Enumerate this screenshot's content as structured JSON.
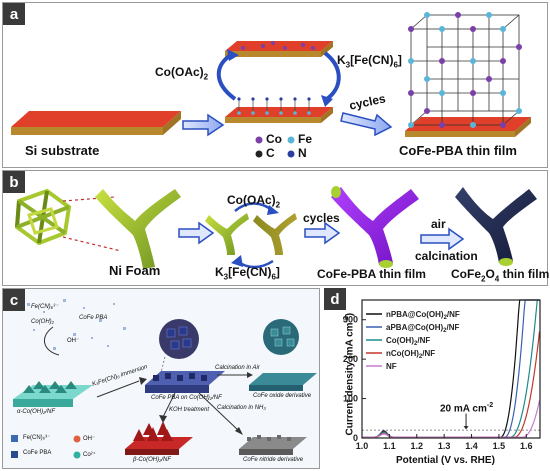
{
  "panel_a": {
    "tag": "a",
    "substrate_label": "Si substrate",
    "reagent_1": "Co(OAc)",
    "reagent_1_sub": "2",
    "reagent_2": "K",
    "reagent_2_sub": "3",
    "reagent_2_rest": "[Fe(CN)",
    "reagent_2_sub2": "6",
    "reagent_2_end": "]",
    "cycles": "cycles",
    "legend": [
      {
        "symbol": "Co",
        "color": "#7a3fa8"
      },
      {
        "symbol": "Fe",
        "color": "#5ab6d8"
      },
      {
        "symbol": "C",
        "color": "#222222"
      },
      {
        "symbol": "N",
        "color": "#2b3fa0"
      }
    ],
    "product_label": "CoFe-PBA thin film"
  },
  "panel_b": {
    "tag": "b",
    "foam_label": "Ni Foam",
    "reagent_1": "Co(OAc)",
    "reagent_1_sub": "2",
    "reagent_2": "K",
    "reagent_2_sub": "3",
    "reagent_2_rest": "[Fe(CN)",
    "reagent_2_sub2": "6",
    "reagent_2_end": "]",
    "cycles": "cycles",
    "pba_label": "CoFe-PBA thin film",
    "air": "air",
    "calcination": "calcination",
    "oxide_label": "CoFe",
    "oxide_sub1": "2",
    "oxide_mid": "O",
    "oxide_sub2": "4",
    "oxide_end": " thin film"
  },
  "panel_c": {
    "tag": "c",
    "lbl_fecn": "Fe(CN)₆³⁻",
    "lbl_cofepba": "CoFe PBA",
    "lbl_cooh": "Co(OH)₂",
    "lbl_oh": "OH⁻",
    "lbl_substrate": "α-Co(OH)₂/NF",
    "lbl_immersion": "K₃Fe(CN)₆ immersion",
    "lbl_pba_on": "CoFe PBA on Co(OH)₂/NF",
    "lbl_calc_air": "Calcination in Air",
    "lbl_oxide": "CoFe oxide derivative",
    "lbl_koh": "KOH treatment",
    "lbl_calc_nh3": "Calcination in NH₃",
    "lbl_beta": "β-Co(OH)₂/NF",
    "lbl_nitride": "CoFe nitride derivative",
    "legend": [
      {
        "label": "Fe(CN)₆³⁻",
        "color": "#3a6ab0"
      },
      {
        "label": "OH⁻",
        "color": "#e06040"
      },
      {
        "label": "CoFe PBA",
        "color": "#2a4a90"
      },
      {
        "label": "Co²⁺",
        "color": "#30b0a0"
      }
    ]
  },
  "panel_d": {
    "tag": "d",
    "annotation": "20 mA cm",
    "annotation_sup": "-2"
  },
  "chart_data": {
    "type": "line",
    "xlabel": "Potential (V vs. RHE)",
    "ylabel": "Current density (mA cm",
    "ylabel_sup": "-2",
    "ylabel_end": ")",
    "xlim": [
      1.0,
      1.65
    ],
    "ylim": [
      0,
      350
    ],
    "xticks": [
      1.0,
      1.1,
      1.2,
      1.3,
      1.4,
      1.5,
      1.6
    ],
    "xtick_labels": [
      "1.0",
      "1.1",
      "1.2",
      "1.3",
      "1.4",
      "1.5",
      "1.6"
    ],
    "yticks": [
      0,
      100,
      200,
      300
    ],
    "ytick_labels": [
      "0",
      "100",
      "200",
      "300"
    ],
    "reference_y": 20,
    "series": [
      {
        "name": "nPBA@Co(OH)",
        "name_sub": "2",
        "name_end": "/NF",
        "color": "#111111",
        "onset": 1.505,
        "x_at_top": 1.575
      },
      {
        "name": "aPBA@Co(OH)",
        "name_sub": "2",
        "name_end": "/NF",
        "color": "#3b5fb0",
        "onset": 1.52,
        "x_at_top": 1.595
      },
      {
        "name": "Co(OH)",
        "name_sub": "2",
        "name_end": "/NF",
        "color": "#1f8a8a",
        "onset": 1.54,
        "x_at_top": 1.64
      },
      {
        "name": "nCo(OH)",
        "name_sub": "2",
        "name_end": "/NF",
        "color": "#c0392b",
        "onset": 1.555,
        "x_at_top": 1.66
      },
      {
        "name": "NF",
        "name_sub": "",
        "name_end": "",
        "color": "#c77dcf",
        "onset": 1.585,
        "x_at_top": 1.7
      }
    ]
  }
}
